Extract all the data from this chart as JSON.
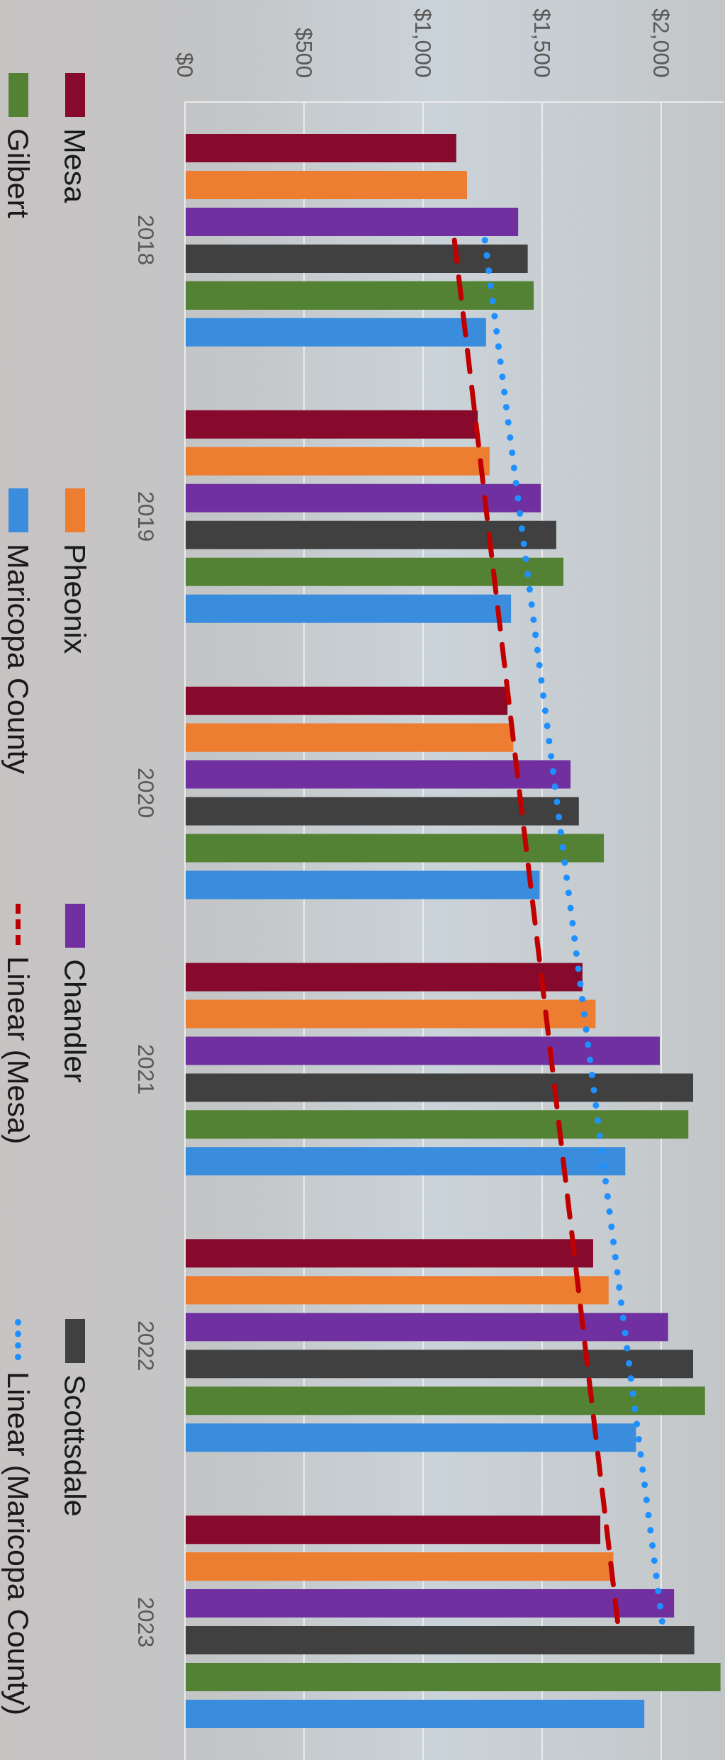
{
  "chart_data": {
    "type": "bar",
    "orientation": "horizontal",
    "categories": [
      "2018",
      "2019",
      "2020",
      "2021",
      "2022",
      "2023"
    ],
    "series": [
      {
        "name": "Mesa",
        "color": "#870a2c",
        "values": [
          1140,
          1230,
          1355,
          1670,
          1715,
          1745
        ]
      },
      {
        "name": "Pheonix",
        "color": "#ed7d31",
        "values": [
          1185,
          1280,
          1380,
          1725,
          1780,
          1800
        ]
      },
      {
        "name": "Chandler",
        "color": "#7030a0",
        "values": [
          1400,
          1495,
          1620,
          1995,
          2030,
          2055
        ]
      },
      {
        "name": "Scottsdale",
        "color": "#404040",
        "values": [
          1440,
          1560,
          1655,
          2135,
          2135,
          2140
        ]
      },
      {
        "name": "Gilbert",
        "color": "#548235",
        "values": [
          1465,
          1590,
          1760,
          2115,
          2185,
          2250
        ]
      },
      {
        "name": "Maricopa County",
        "color": "#3a8ddd",
        "values": [
          1265,
          1370,
          1490,
          1850,
          1895,
          1930
        ]
      },
      {
        "name": "Linear (Mesa)",
        "type": "line",
        "line_style": "dashed",
        "color": "#c00000",
        "values": [
          1132,
          1269,
          1406,
          1544,
          1681,
          1818
        ]
      },
      {
        "name": "Linear (Maricopa County)",
        "type": "line",
        "line_style": "dotted",
        "color": "#1e90ff",
        "values": [
          1260,
          1409,
          1558,
          1707,
          1856,
          2005
        ]
      }
    ],
    "xlim": [
      0,
      2260
    ],
    "xticks": [
      {
        "value": 0,
        "label": "$0"
      },
      {
        "value": 500,
        "label": "$500"
      },
      {
        "value": 1000,
        "label": "$1,000"
      },
      {
        "value": 1500,
        "label": "$1,500"
      },
      {
        "value": 2000,
        "label": "$2,000"
      }
    ],
    "grid": "x",
    "legend": "left"
  }
}
